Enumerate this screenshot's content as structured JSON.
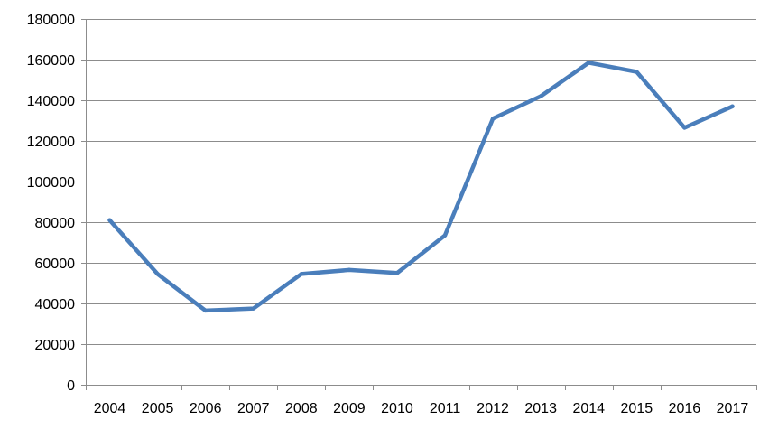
{
  "chart_data": {
    "type": "line",
    "title": "",
    "xlabel": "",
    "ylabel": "",
    "categories": [
      "2004",
      "2005",
      "2006",
      "2007",
      "2008",
      "2009",
      "2010",
      "2011",
      "2012",
      "2013",
      "2014",
      "2015",
      "2016",
      "2017"
    ],
    "series": [
      {
        "values": [
          81000,
          54500,
          36500,
          37500,
          54500,
          56500,
          55000,
          73500,
          131000,
          142000,
          158500,
          154000,
          126500,
          137000
        ],
        "color": "#4a7ebb"
      }
    ],
    "ylim": [
      0,
      180000
    ],
    "yticks": [
      "0",
      "20000",
      "40000",
      "60000",
      "80000",
      "100000",
      "120000",
      "140000",
      "160000",
      "180000"
    ],
    "grid": true,
    "legend": "none"
  }
}
